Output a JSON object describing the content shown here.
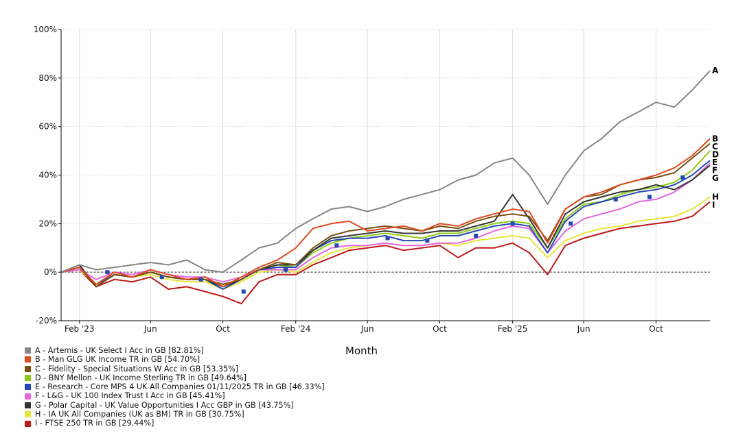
{
  "chart_data": {
    "type": "line",
    "xlabel": "Month",
    "ylabel": "",
    "ylim": [
      -20,
      100
    ],
    "yticks": [
      "-20%",
      "0%",
      "20%",
      "40%",
      "60%",
      "80%",
      "100%"
    ],
    "y_tick_values": [
      -20,
      0,
      20,
      40,
      60,
      80,
      100
    ],
    "x_tick_labels": [
      "Feb '23",
      "Jun",
      "Oct",
      "Feb '24",
      "Jun",
      "Oct",
      "Feb '25",
      "Jun",
      "Oct"
    ],
    "x_tick_dates": [
      "2023-02-01",
      "2023-06-01",
      "2023-10-01",
      "2024-02-01",
      "2024-06-01",
      "2024-10-01",
      "2025-02-01",
      "2025-06-01",
      "2025-10-01"
    ],
    "x_start": "2023-01-01",
    "x_end": "2025-12-31",
    "grid": true,
    "legend_position": "bottom-left",
    "colors": {
      "A": "#858585",
      "B": "#e04a21",
      "C": "#7a4f10",
      "D": "#8ccc10",
      "E": "#2449b5",
      "F": "#e565e0",
      "G": "#333333",
      "H": "#e6e63a",
      "I": "#c01818"
    },
    "legend": [
      {
        "key": "A",
        "label": "A - Artemis - UK Select I Acc in GB [82.81%]"
      },
      {
        "key": "B",
        "label": "B - Man GLG UK Income TR in GB [54.70%]"
      },
      {
        "key": "C",
        "label": "C - Fidelity - Special Situations W Acc in GB [53.35%]"
      },
      {
        "key": "D",
        "label": "D - BNY Mellon - UK Income Sterling TR in GB [49.64%]"
      },
      {
        "key": "E",
        "label": "E - Research - Core MPS 4 UK All Companies 01/11/2025 TR in GB [46.33%]"
      },
      {
        "key": "F",
        "label": "F - L&G - UK 100 Index Trust I Acc in GB [45.41%]"
      },
      {
        "key": "G",
        "label": "G - Polar Capital - UK Value Opportunities I Acc GBP in GB [43.75%]"
      },
      {
        "key": "H",
        "label": "H - IA UK All Companies (UK as BM) TR in GB [30.75%]"
      },
      {
        "key": "I",
        "label": "I - FTSE 250 TR in GB [29.44%]"
      }
    ],
    "series": [
      {
        "key": "A",
        "name": "A - Artemis - UK Select I Acc in GB [82.81%]",
        "x": [
          "2023-01-01",
          "2023-02-01",
          "2023-03-01",
          "2023-04-01",
          "2023-05-01",
          "2023-06-01",
          "2023-07-01",
          "2023-08-01",
          "2023-09-01",
          "2023-10-01",
          "2023-11-01",
          "2023-12-01",
          "2024-01-01",
          "2024-02-01",
          "2024-03-01",
          "2024-04-01",
          "2024-05-01",
          "2024-06-01",
          "2024-07-01",
          "2024-08-01",
          "2024-09-01",
          "2024-10-01",
          "2024-11-01",
          "2024-12-01",
          "2025-01-01",
          "2025-02-01",
          "2025-03-01",
          "2025-04-01",
          "2025-05-01",
          "2025-06-01",
          "2025-07-01",
          "2025-08-01",
          "2025-09-01",
          "2025-10-01",
          "2025-11-01",
          "2025-12-01",
          "2025-12-31"
        ],
        "y": [
          0,
          3,
          1,
          2,
          3,
          4,
          3,
          5,
          1,
          0,
          5,
          10,
          12,
          18,
          22,
          26,
          27,
          25,
          27,
          30,
          32,
          34,
          38,
          40,
          45,
          47,
          40,
          28,
          40,
          50,
          55,
          62,
          66,
          70,
          68,
          75,
          83
        ]
      },
      {
        "key": "B",
        "name": "B - Man GLG UK Income TR in GB [54.70%]",
        "x": [
          "2023-01-01",
          "2023-02-01",
          "2023-03-01",
          "2023-04-01",
          "2023-05-01",
          "2023-06-01",
          "2023-07-01",
          "2023-08-01",
          "2023-09-01",
          "2023-10-01",
          "2023-11-01",
          "2023-12-01",
          "2024-01-01",
          "2024-02-01",
          "2024-03-01",
          "2024-04-01",
          "2024-05-01",
          "2024-06-01",
          "2024-07-01",
          "2024-08-01",
          "2024-09-01",
          "2024-10-01",
          "2024-11-01",
          "2024-12-01",
          "2025-01-01",
          "2025-02-01",
          "2025-03-01",
          "2025-04-01",
          "2025-05-01",
          "2025-06-01",
          "2025-07-01",
          "2025-08-01",
          "2025-09-01",
          "2025-10-01",
          "2025-11-01",
          "2025-12-01",
          "2025-12-31"
        ],
        "y": [
          0,
          2,
          -5,
          0,
          -2,
          1,
          -1,
          -3,
          -2,
          -6,
          -2,
          2,
          5,
          10,
          18,
          20,
          21,
          17,
          18,
          19,
          17,
          20,
          19,
          22,
          24,
          26,
          25,
          12,
          26,
          31,
          33,
          36,
          38,
          40,
          43,
          48,
          55
        ]
      },
      {
        "key": "C",
        "name": "C - Fidelity - Special Situations W Acc in GB [53.35%]",
        "x": [
          "2023-01-01",
          "2023-02-01",
          "2023-03-01",
          "2023-04-01",
          "2023-05-01",
          "2023-06-01",
          "2023-07-01",
          "2023-08-01",
          "2023-09-01",
          "2023-10-01",
          "2023-11-01",
          "2023-12-01",
          "2024-01-01",
          "2024-02-01",
          "2024-03-01",
          "2024-04-01",
          "2024-05-01",
          "2024-06-01",
          "2024-07-01",
          "2024-08-01",
          "2024-09-01",
          "2024-10-01",
          "2024-11-01",
          "2024-12-01",
          "2025-01-01",
          "2025-02-01",
          "2025-03-01",
          "2025-04-01",
          "2025-05-01",
          "2025-06-01",
          "2025-07-01",
          "2025-08-01",
          "2025-09-01",
          "2025-10-01",
          "2025-11-01",
          "2025-12-01",
          "2025-12-31"
        ],
        "y": [
          0,
          2,
          -6,
          -1,
          -2,
          0,
          -2,
          -3,
          -3,
          -5,
          -3,
          1,
          4,
          3,
          10,
          15,
          17,
          18,
          19,
          18,
          17,
          19,
          18,
          21,
          23,
          24,
          23,
          13,
          26,
          31,
          32,
          36,
          38,
          39,
          41,
          47,
          53
        ]
      },
      {
        "key": "D",
        "name": "D - BNY Mellon - UK Income Sterling TR in GB [49.64%]",
        "x": [
          "2023-01-01",
          "2023-02-01",
          "2023-03-01",
          "2023-04-01",
          "2023-05-01",
          "2023-06-01",
          "2023-07-01",
          "2023-08-01",
          "2023-09-01",
          "2023-10-01",
          "2023-11-01",
          "2023-12-01",
          "2024-01-01",
          "2024-02-01",
          "2024-03-01",
          "2024-04-01",
          "2024-05-01",
          "2024-06-01",
          "2024-07-01",
          "2024-08-01",
          "2024-09-01",
          "2024-10-01",
          "2024-11-01",
          "2024-12-01",
          "2025-01-01",
          "2025-02-01",
          "2025-03-01",
          "2025-04-01",
          "2025-05-01",
          "2025-06-01",
          "2025-07-01",
          "2025-08-01",
          "2025-09-01",
          "2025-10-01",
          "2025-11-01",
          "2025-12-01",
          "2025-12-31"
        ],
        "y": [
          0,
          2,
          -5,
          -1,
          -2,
          0,
          -2,
          -3,
          -3,
          -5,
          -3,
          1,
          3,
          2,
          8,
          12,
          14,
          15,
          16,
          15,
          14,
          16,
          16,
          18,
          20,
          21,
          20,
          10,
          22,
          28,
          29,
          32,
          34,
          35,
          37,
          42,
          50
        ]
      },
      {
        "key": "E",
        "name": "E - Research - Core MPS 4 UK All Companies 01/11/2025 TR in GB [46.33%]",
        "x": [
          "2023-01-01",
          "2023-02-01",
          "2023-03-01",
          "2023-04-01",
          "2023-05-01",
          "2023-06-01",
          "2023-07-01",
          "2023-08-01",
          "2023-09-01",
          "2023-10-01",
          "2023-11-01",
          "2023-12-01",
          "2024-01-01",
          "2024-02-01",
          "2024-03-01",
          "2024-04-01",
          "2024-05-01",
          "2024-06-01",
          "2024-07-01",
          "2024-08-01",
          "2024-09-01",
          "2024-10-01",
          "2024-11-01",
          "2024-12-01",
          "2025-01-01",
          "2025-02-01",
          "2025-03-01",
          "2025-04-01",
          "2025-05-01",
          "2025-06-01",
          "2025-07-01",
          "2025-08-01",
          "2025-09-01",
          "2025-10-01",
          "2025-11-01",
          "2025-12-01",
          "2025-12-31"
        ],
        "y": [
          0,
          2,
          -5,
          -1,
          -2,
          0,
          -2,
          -3,
          -3,
          -7,
          -3,
          1,
          2,
          2,
          9,
          13,
          14,
          14,
          15,
          13,
          13,
          15,
          15,
          17,
          19,
          20,
          19,
          8,
          21,
          27,
          29,
          31,
          33,
          34,
          36,
          40,
          46
        ]
      },
      {
        "key": "F",
        "name": "F - L&G - UK 100 Index Trust I Acc in GB [45.41%]",
        "x": [
          "2023-01-01",
          "2023-02-01",
          "2023-03-01",
          "2023-04-01",
          "2023-05-01",
          "2023-06-01",
          "2023-07-01",
          "2023-08-01",
          "2023-09-01",
          "2023-10-01",
          "2023-11-01",
          "2023-12-01",
          "2024-01-01",
          "2024-02-01",
          "2024-03-01",
          "2024-04-01",
          "2024-05-01",
          "2024-06-01",
          "2024-07-01",
          "2024-08-01",
          "2024-09-01",
          "2024-10-01",
          "2024-11-01",
          "2024-12-01",
          "2025-01-01",
          "2025-02-01",
          "2025-03-01",
          "2025-04-01",
          "2025-05-01",
          "2025-06-01",
          "2025-07-01",
          "2025-08-01",
          "2025-09-01",
          "2025-10-01",
          "2025-11-01",
          "2025-12-01",
          "2025-12-31"
        ],
        "y": [
          0,
          1,
          -3,
          0,
          -1,
          1,
          -1,
          -2,
          -2,
          -4,
          -2,
          1,
          1,
          1,
          6,
          10,
          11,
          11,
          12,
          11,
          11,
          12,
          12,
          14,
          17,
          19,
          18,
          8,
          17,
          22,
          24,
          26,
          29,
          30,
          33,
          38,
          45
        ]
      },
      {
        "key": "G",
        "name": "G - Polar Capital - UK Value Opportunities I Acc GBP in GB [43.75%]",
        "x": [
          "2023-01-01",
          "2023-02-01",
          "2023-03-01",
          "2023-04-01",
          "2023-05-01",
          "2023-06-01",
          "2023-07-01",
          "2023-08-01",
          "2023-09-01",
          "2023-10-01",
          "2023-11-01",
          "2023-12-01",
          "2024-01-01",
          "2024-02-01",
          "2024-03-01",
          "2024-04-01",
          "2024-05-01",
          "2024-06-01",
          "2024-07-01",
          "2024-08-01",
          "2024-09-01",
          "2024-10-01",
          "2024-11-01",
          "2024-12-01",
          "2025-01-01",
          "2025-02-01",
          "2025-03-01",
          "2025-04-01",
          "2025-05-01",
          "2025-06-01",
          "2025-07-01",
          "2025-08-01",
          "2025-09-01",
          "2025-10-01",
          "2025-11-01",
          "2025-12-01",
          "2025-12-31"
        ],
        "y": [
          0,
          3,
          -6,
          -1,
          -2,
          0,
          -2,
          -3,
          -3,
          -6,
          -3,
          1,
          3,
          3,
          9,
          14,
          15,
          16,
          17,
          16,
          16,
          17,
          17,
          19,
          21,
          32,
          22,
          10,
          24,
          29,
          31,
          33,
          34,
          36,
          34,
          38,
          44
        ]
      },
      {
        "key": "H",
        "name": "H - IA UK All Companies (UK as BM) TR in GB [30.75%]",
        "x": [
          "2023-01-01",
          "2023-02-01",
          "2023-03-01",
          "2023-04-01",
          "2023-05-01",
          "2023-06-01",
          "2023-07-01",
          "2023-08-01",
          "2023-09-01",
          "2023-10-01",
          "2023-11-01",
          "2023-12-01",
          "2024-01-01",
          "2024-02-01",
          "2024-03-01",
          "2024-04-01",
          "2024-05-01",
          "2024-06-01",
          "2024-07-01",
          "2024-08-01",
          "2024-09-01",
          "2024-10-01",
          "2024-11-01",
          "2024-12-01",
          "2025-01-01",
          "2025-02-01",
          "2025-03-01",
          "2025-04-01",
          "2025-05-01",
          "2025-06-01",
          "2025-07-01",
          "2025-08-01",
          "2025-09-01",
          "2025-10-01",
          "2025-11-01",
          "2025-12-01",
          "2025-12-31"
        ],
        "y": [
          0,
          1,
          -5,
          -1,
          -2,
          -1,
          -3,
          -4,
          -4,
          -7,
          -4,
          0,
          1,
          0,
          4,
          8,
          10,
          11,
          12,
          11,
          11,
          12,
          11,
          13,
          14,
          15,
          14,
          6,
          13,
          16,
          18,
          19,
          21,
          22,
          23,
          26,
          31
        ]
      },
      {
        "key": "I",
        "name": "I - FTSE 250 TR in GB [29.44%]",
        "x": [
          "2023-01-01",
          "2023-02-01",
          "2023-03-01",
          "2023-04-01",
          "2023-05-01",
          "2023-06-01",
          "2023-07-01",
          "2023-08-01",
          "2023-09-01",
          "2023-10-01",
          "2023-11-01",
          "2023-12-01",
          "2024-01-01",
          "2024-02-01",
          "2024-03-01",
          "2024-04-01",
          "2024-05-01",
          "2024-06-01",
          "2024-07-01",
          "2024-08-01",
          "2024-09-01",
          "2024-10-01",
          "2024-11-01",
          "2024-12-01",
          "2025-01-01",
          "2025-02-01",
          "2025-03-01",
          "2025-04-01",
          "2025-05-01",
          "2025-06-01",
          "2025-07-01",
          "2025-08-01",
          "2025-09-01",
          "2025-10-01",
          "2025-11-01",
          "2025-12-01",
          "2025-12-31"
        ],
        "y": [
          0,
          1,
          -6,
          -3,
          -4,
          -2,
          -7,
          -6,
          -8,
          -10,
          -13,
          -4,
          -1,
          -1,
          3,
          6,
          9,
          10,
          11,
          9,
          10,
          11,
          6,
          10,
          10,
          12,
          8,
          -1,
          11,
          14,
          16,
          18,
          19,
          20,
          21,
          23,
          29
        ]
      }
    ],
    "markers": [
      {
        "key": "E",
        "x": [
          "2023-03-20",
          "2023-06-20",
          "2023-08-25",
          "2023-11-05",
          "2024-01-15",
          "2024-04-10",
          "2024-07-05",
          "2024-09-10",
          "2024-12-01",
          "2025-02-01",
          "2025-05-10",
          "2025-07-25",
          "2025-09-20",
          "2025-11-15"
        ],
        "y": [
          0,
          -2,
          -3,
          -8,
          1,
          11,
          14,
          13,
          15,
          20,
          20,
          30,
          31,
          39
        ]
      }
    ]
  }
}
